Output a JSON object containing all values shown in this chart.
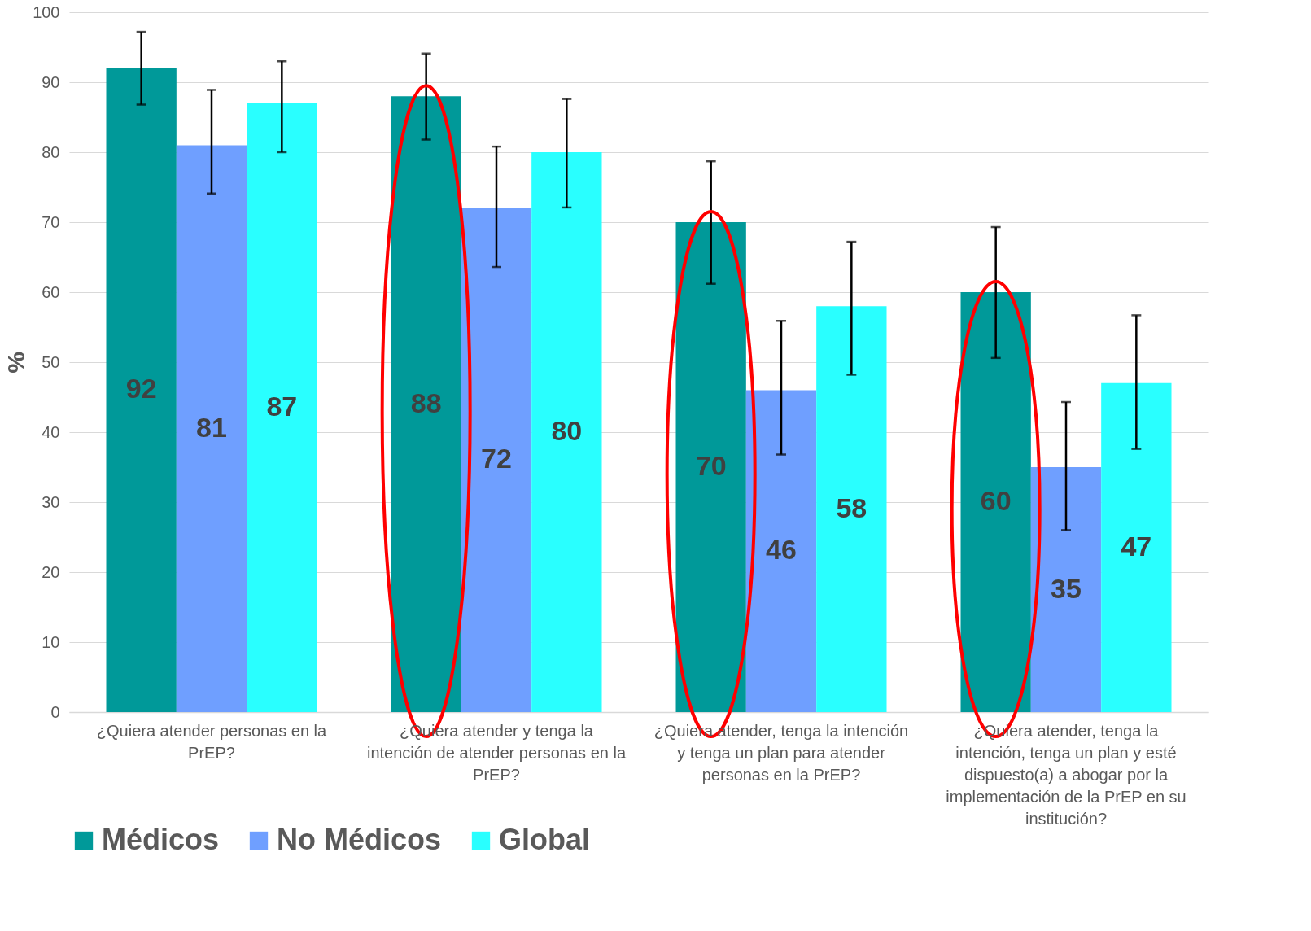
{
  "chart_data": {
    "type": "bar",
    "ylabel": "%",
    "categories": [
      "¿Quiera atender personas en la PrEP?",
      "¿Quiera atender y tenga la intención de atender personas en la PrEP?",
      "¿Quiera atender, tenga la intención y tenga un plan para atender personas en la PrEP?",
      "¿Quiera atender, tenga la intención, tenga un plan y esté dispuesto(a) a abogar por la implementación de la PrEP en su institución?"
    ],
    "series": [
      {
        "name": "Médicos",
        "color": "#009999",
        "values": [
          92,
          88,
          70,
          60
        ],
        "errors": [
          [
            86.8,
            97.2
          ],
          [
            81.8,
            94.1
          ],
          [
            61.2,
            78.7
          ],
          [
            50.6,
            69.3
          ]
        ]
      },
      {
        "name": "No Médicos",
        "color": "#6f9fff",
        "values": [
          81,
          72,
          46,
          35
        ],
        "errors": [
          [
            74.1,
            88.9
          ],
          [
            63.6,
            80.8
          ],
          [
            36.8,
            55.9
          ],
          [
            26.0,
            44.3
          ]
        ]
      },
      {
        "name": "Global",
        "color": "#29ffff",
        "values": [
          87,
          80,
          58,
          47
        ],
        "errors": [
          [
            80.0,
            93.0
          ],
          [
            72.1,
            87.6
          ],
          [
            48.2,
            67.2
          ],
          [
            37.6,
            56.7
          ]
        ]
      }
    ],
    "ylim": [
      0,
      100
    ],
    "yticks": [
      0,
      10,
      20,
      30,
      40,
      50,
      60,
      70,
      80,
      90,
      100
    ],
    "grid": "y",
    "legend": "bottom",
    "data_labels": true
  }
}
